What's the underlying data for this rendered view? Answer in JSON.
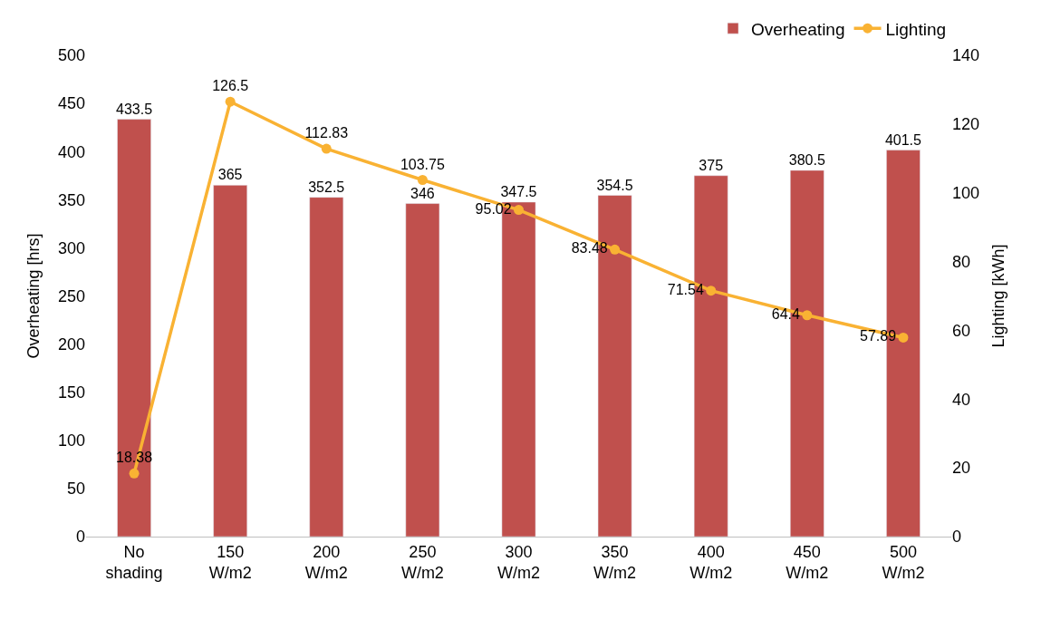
{
  "chart_data": {
    "type": "bar",
    "xlabel": null,
    "ylabel": "Overheating [hrs]",
    "y2label": "Lighting [kWh]",
    "categories": [
      "No shading",
      "150 W/m2",
      "200 W/m2",
      "250 W/m2",
      "300 W/m2",
      "350 W/m2",
      "400 W/m2",
      "450 W/m2",
      "500 W/m2"
    ],
    "series": [
      {
        "name": "Overheating",
        "color": "#c0504d",
        "values": [
          433.5,
          365,
          352.5,
          346,
          347.5,
          354.5,
          375,
          380.5,
          401.5
        ]
      },
      {
        "name": "Lighting",
        "type": "line",
        "axis": "y2",
        "color": "#f9b233",
        "marker": "circle",
        "line_style": "solid",
        "values": [
          18.38,
          126.5,
          112.83,
          103.75,
          95.02,
          83.48,
          71.54,
          64.4,
          57.89
        ]
      }
    ],
    "ylim": [
      0,
      500
    ],
    "yticks": [
      0,
      50,
      100,
      150,
      200,
      250,
      300,
      350,
      400,
      450,
      500
    ],
    "y2lim": [
      0,
      140
    ],
    "y2ticks": [
      0,
      20,
      40,
      60,
      80,
      100,
      120,
      140
    ],
    "data_labels": true,
    "grid": false,
    "legend": "top right"
  }
}
